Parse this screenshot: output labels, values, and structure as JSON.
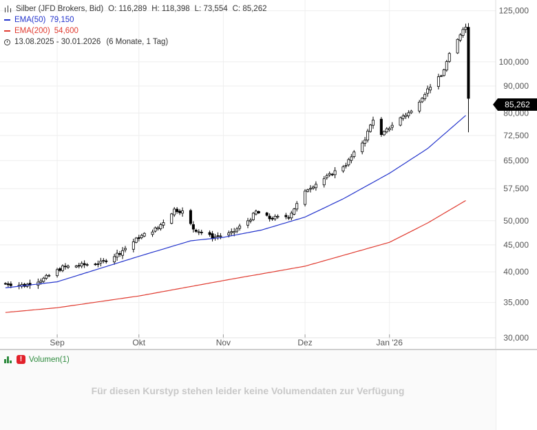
{
  "legend": {
    "instrument": "Silber (JFD Brokers, Bid)",
    "open": "O: 116,289",
    "high": "H: 118,398",
    "low": "L: 73,554",
    "close": "C: 85,262",
    "ema50_label": "EMA(50)",
    "ema50_value": "79,150",
    "ema200_label": "EMA(200)",
    "ema200_value": "54,600",
    "range": "13.08.2025 - 30.01.2026",
    "range_detail": "(6 Monate, 1 Tag)"
  },
  "last_price_label": "85,262",
  "volume": {
    "label": "Volumen(1)",
    "message": "Für diesen Kurstyp stehen leider keine Volumendaten zur Verfügung"
  },
  "colors": {
    "ema50": "#2233cc",
    "ema200": "#e03a2f",
    "candle": "#000000",
    "grid": "#eeeeee",
    "volume_icon": "#2e8b3e",
    "warning": "#e2202a"
  },
  "chart_data": {
    "type": "candlestick",
    "title": "Silber (JFD Brokers, Bid)",
    "y_scale": "log",
    "ylim": [
      28500,
      131000
    ],
    "y_ticks": [
      {
        "value": 30000,
        "label": "30,000"
      },
      {
        "value": 35000,
        "label": "35,000"
      },
      {
        "value": 40000,
        "label": "40,000"
      },
      {
        "value": 45000,
        "label": "45,000"
      },
      {
        "value": 50000,
        "label": "50,000"
      },
      {
        "value": 57500,
        "label": "57,500"
      },
      {
        "value": 65000,
        "label": "65,000"
      },
      {
        "value": 72500,
        "label": "72,500"
      },
      {
        "value": 80000,
        "label": "80,000"
      },
      {
        "value": 90000,
        "label": "90,000"
      },
      {
        "value": 100000,
        "label": "100,000"
      },
      {
        "value": 125000,
        "label": "125,000"
      }
    ],
    "x_range": [
      "2025-08-13",
      "2026-01-30"
    ],
    "x_ticks": [
      {
        "date": "2025-09-01",
        "label": "Sep"
      },
      {
        "date": "2025-10-01",
        "label": "Okt"
      },
      {
        "date": "2025-11-01",
        "label": "Nov"
      },
      {
        "date": "2025-12-01",
        "label": "Dez"
      },
      {
        "date": "2026-01-01",
        "label": "Jan '26"
      }
    ],
    "grid": true,
    "last_ohlc": {
      "open": 116289,
      "high": 118398,
      "low": 73554,
      "close": 85262
    },
    "close_anchors": [
      [
        "2025-08-13",
        38000
      ],
      [
        "2025-08-20",
        37700
      ],
      [
        "2025-08-27",
        38800
      ],
      [
        "2025-09-03",
        40800
      ],
      [
        "2025-09-10",
        41200
      ],
      [
        "2025-09-17",
        41600
      ],
      [
        "2025-09-24",
        43500
      ],
      [
        "2025-10-01",
        46500
      ],
      [
        "2025-10-08",
        48500
      ],
      [
        "2025-10-14",
        52500
      ],
      [
        "2025-10-17",
        52000
      ],
      [
        "2025-10-21",
        48300
      ],
      [
        "2025-10-28",
        46500
      ],
      [
        "2025-11-04",
        47300
      ],
      [
        "2025-11-11",
        50500
      ],
      [
        "2025-11-13",
        52000
      ],
      [
        "2025-11-18",
        50500
      ],
      [
        "2025-11-25",
        51000
      ],
      [
        "2025-12-02",
        57500
      ],
      [
        "2025-12-09",
        60500
      ],
      [
        "2025-12-16",
        64000
      ],
      [
        "2025-12-19",
        67000
      ],
      [
        "2025-12-23",
        71500
      ],
      [
        "2025-12-26",
        78000
      ],
      [
        "2025-12-29",
        72500
      ],
      [
        "2026-01-02",
        76000
      ],
      [
        "2026-01-06",
        79000
      ],
      [
        "2026-01-09",
        80500
      ],
      [
        "2026-01-13",
        86000
      ],
      [
        "2026-01-16",
        90000
      ],
      [
        "2026-01-20",
        94000
      ],
      [
        "2026-01-23",
        103000
      ],
      [
        "2026-01-26",
        110000
      ],
      [
        "2026-01-28",
        116000
      ],
      [
        "2026-01-29",
        116289
      ],
      [
        "2026-01-30",
        85262
      ]
    ],
    "series": [
      {
        "name": "EMA(50)",
        "last": 79150,
        "points": [
          [
            "2025-08-13",
            37300
          ],
          [
            "2025-09-01",
            38300
          ],
          [
            "2025-10-01",
            42800
          ],
          [
            "2025-10-20",
            45800
          ],
          [
            "2025-11-01",
            46500
          ],
          [
            "2025-11-15",
            48000
          ],
          [
            "2025-12-01",
            50800
          ],
          [
            "2025-12-15",
            55000
          ],
          [
            "2026-01-01",
            61500
          ],
          [
            "2026-01-15",
            68500
          ],
          [
            "2026-01-29",
            79150
          ]
        ]
      },
      {
        "name": "EMA(200)",
        "last": 54600,
        "points": [
          [
            "2025-08-13",
            33500
          ],
          [
            "2025-09-01",
            34200
          ],
          [
            "2025-10-01",
            36000
          ],
          [
            "2025-11-01",
            38500
          ],
          [
            "2025-12-01",
            41000
          ],
          [
            "2026-01-01",
            45500
          ],
          [
            "2026-01-15",
            49500
          ],
          [
            "2026-01-29",
            54600
          ]
        ]
      }
    ]
  }
}
